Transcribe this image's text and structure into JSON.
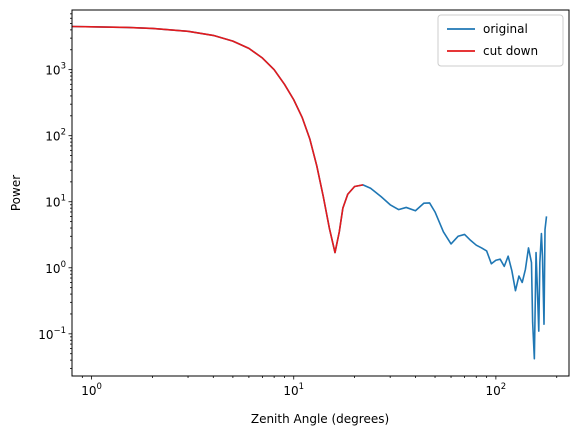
{
  "chart_data": {
    "type": "line",
    "xlabel": "Zenith Angle (degrees)",
    "ylabel": "Power",
    "xscale": "log",
    "yscale": "log",
    "xlim": [
      0.8,
      230
    ],
    "ylim": [
      0.023,
      8000
    ],
    "x_ticks": [
      {
        "value": 1,
        "base": "10",
        "exp": "0"
      },
      {
        "value": 10,
        "base": "10",
        "exp": "1"
      },
      {
        "value": 100,
        "base": "10",
        "exp": "2"
      }
    ],
    "y_ticks": [
      {
        "value": 0.1,
        "base": "10",
        "exp": "−1"
      },
      {
        "value": 1,
        "base": "10",
        "exp": "0"
      },
      {
        "value": 10,
        "base": "10",
        "exp": "1"
      },
      {
        "value": 100,
        "base": "10",
        "exp": "2"
      },
      {
        "value": 1000,
        "base": "10",
        "exp": "3"
      }
    ],
    "grid": false,
    "legend_position": "top-right",
    "series": [
      {
        "name": "original",
        "color": "#1f77b4",
        "x": [
          0.8,
          1,
          1.5,
          2,
          3,
          4,
          5,
          6,
          7,
          8,
          9,
          10,
          11,
          12,
          13,
          14,
          15,
          16,
          16.8,
          17.5,
          18.5,
          20,
          22,
          24,
          27,
          30,
          33,
          36,
          40,
          44,
          47,
          50,
          55,
          60,
          65,
          70,
          75,
          80,
          85,
          90,
          95,
          100,
          105,
          110,
          115,
          120,
          125,
          130,
          135,
          140,
          145,
          150,
          152,
          155,
          158,
          160,
          163,
          165,
          168,
          170,
          173,
          175,
          178
        ],
        "y": [
          4500,
          4450,
          4350,
          4200,
          3800,
          3300,
          2700,
          2100,
          1500,
          1000,
          600,
          350,
          190,
          90,
          35,
          12,
          4,
          1.7,
          3.5,
          8,
          13,
          17,
          18,
          16,
          12,
          9,
          7.6,
          8.2,
          7.3,
          9.5,
          9.6,
          7,
          3.5,
          2.3,
          3,
          3.2,
          2.6,
          2.2,
          2.0,
          1.8,
          1.15,
          1.3,
          1.35,
          1.05,
          1.5,
          0.9,
          0.45,
          0.75,
          0.6,
          0.95,
          2.0,
          1.2,
          0.15,
          0.042,
          1.7,
          0.6,
          0.11,
          1.2,
          3.3,
          1.5,
          0.14,
          3.8,
          6
        ],
        "data_role": "measured"
      },
      {
        "name": "cut down",
        "color": "#e31a1c",
        "x": [
          0.8,
          1,
          1.5,
          2,
          3,
          4,
          5,
          6,
          7,
          8,
          9,
          10,
          11,
          12,
          13,
          14,
          15,
          16,
          16.8,
          17.5,
          18.5,
          20,
          22
        ],
        "y": [
          4500,
          4450,
          4350,
          4200,
          3800,
          3300,
          2700,
          2100,
          1500,
          1000,
          600,
          350,
          190,
          90,
          35,
          12,
          4,
          1.7,
          3.5,
          8,
          13,
          17,
          18
        ]
      }
    ]
  }
}
